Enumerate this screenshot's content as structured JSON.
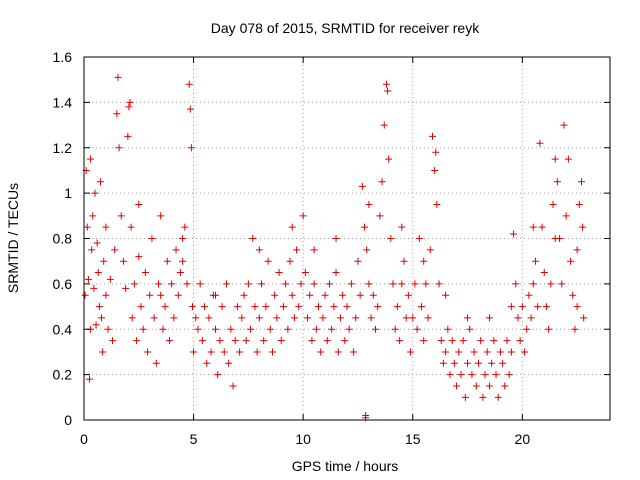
{
  "chart_data": {
    "type": "scatter",
    "title": "Day 078 of 2015, SRMTID for receiver reyk",
    "xlabel": "GPS time / hours",
    "ylabel": "SRMTID / TECUs",
    "xlim": [
      0,
      24
    ],
    "ylim": [
      0,
      1.6
    ],
    "xticks": [
      "0",
      "5",
      "10",
      "15",
      "20"
    ],
    "yticks": [
      "0",
      "0.2",
      "0.4",
      "0.6",
      "0.8",
      "1",
      "1.2",
      "1.4",
      "1.6"
    ],
    "grid": true,
    "marker": "plus",
    "color": "#e00000",
    "series": [
      {
        "name": "SRMTID",
        "points": [
          [
            0.05,
            0.55
          ],
          [
            0.1,
            1.1
          ],
          [
            0.15,
            0.85
          ],
          [
            0.2,
            0.62
          ],
          [
            0.25,
            0.18
          ],
          [
            0.3,
            1.15
          ],
          [
            0.35,
            0.75
          ],
          [
            0.4,
            0.9
          ],
          [
            0.45,
            0.58
          ],
          [
            0.5,
            1.0
          ],
          [
            0.55,
            0.42
          ],
          [
            0.6,
            0.78
          ],
          [
            0.65,
            0.65
          ],
          [
            0.7,
            0.5
          ],
          [
            0.75,
            1.05
          ],
          [
            0.8,
            0.45
          ],
          [
            0.85,
            0.3
          ],
          [
            0.9,
            0.7
          ],
          [
            1.0,
            0.55
          ],
          [
            1.1,
            0.4
          ],
          [
            1.2,
            0.62
          ],
          [
            1.3,
            0.35
          ],
          [
            1.4,
            0.75
          ],
          [
            1.5,
            1.35
          ],
          [
            1.55,
            1.51
          ],
          [
            1.6,
            1.2
          ],
          [
            1.7,
            0.9
          ],
          [
            1.8,
            0.7
          ],
          [
            1.9,
            0.58
          ],
          [
            2.0,
            1.25
          ],
          [
            2.05,
            1.38
          ],
          [
            2.1,
            1.4
          ],
          [
            2.15,
            0.85
          ],
          [
            2.2,
            0.45
          ],
          [
            2.3,
            0.6
          ],
          [
            2.4,
            0.35
          ],
          [
            2.5,
            0.72
          ],
          [
            2.6,
            0.5
          ],
          [
            2.7,
            0.4
          ],
          [
            2.8,
            0.65
          ],
          [
            2.9,
            0.3
          ],
          [
            3.0,
            0.55
          ],
          [
            3.1,
            0.8
          ],
          [
            3.2,
            0.45
          ],
          [
            3.3,
            0.25
          ],
          [
            3.4,
            0.6
          ],
          [
            3.5,
            0.9
          ],
          [
            3.6,
            0.4
          ],
          [
            3.7,
            0.5
          ],
          [
            3.8,
            0.7
          ],
          [
            3.9,
            0.35
          ],
          [
            4.0,
            0.6
          ],
          [
            4.1,
            0.45
          ],
          [
            4.2,
            0.75
          ],
          [
            4.3,
            0.55
          ],
          [
            4.4,
            0.65
          ],
          [
            4.5,
            0.7
          ],
          [
            4.6,
            0.85
          ],
          [
            4.7,
            0.6
          ],
          [
            4.8,
            1.48
          ],
          [
            4.85,
            1.37
          ],
          [
            4.9,
            1.2
          ],
          [
            4.95,
            0.5
          ],
          [
            5.0,
            0.3
          ],
          [
            5.1,
            0.45
          ],
          [
            5.2,
            0.4
          ],
          [
            5.3,
            0.6
          ],
          [
            5.4,
            0.35
          ],
          [
            5.5,
            0.5
          ],
          [
            5.6,
            0.25
          ],
          [
            5.7,
            0.45
          ],
          [
            5.8,
            0.3
          ],
          [
            5.9,
            0.55
          ],
          [
            6.0,
            0.4
          ],
          [
            6.1,
            0.2
          ],
          [
            6.2,
            0.35
          ],
          [
            6.3,
            0.5
          ],
          [
            6.4,
            0.3
          ],
          [
            6.5,
            0.6
          ],
          [
            6.6,
            0.25
          ],
          [
            6.7,
            0.4
          ],
          [
            6.8,
            0.15
          ],
          [
            6.9,
            0.35
          ],
          [
            7.0,
            0.5
          ],
          [
            7.1,
            0.3
          ],
          [
            7.2,
            0.45
          ],
          [
            7.3,
            0.55
          ],
          [
            7.4,
            0.35
          ],
          [
            7.5,
            0.6
          ],
          [
            7.6,
            0.4
          ],
          [
            7.7,
            0.8
          ],
          [
            7.8,
            0.5
          ],
          [
            7.9,
            0.3
          ],
          [
            8.0,
            0.45
          ],
          [
            8.1,
            0.6
          ],
          [
            8.2,
            0.35
          ],
          [
            8.3,
            0.5
          ],
          [
            8.4,
            0.7
          ],
          [
            8.5,
            0.4
          ],
          [
            8.6,
            0.3
          ],
          [
            8.7,
            0.55
          ],
          [
            8.8,
            0.45
          ],
          [
            8.9,
            0.65
          ],
          [
            9.0,
            0.35
          ],
          [
            9.1,
            0.5
          ],
          [
            9.2,
            0.6
          ],
          [
            9.3,
            0.4
          ],
          [
            9.4,
            0.7
          ],
          [
            9.5,
            0.55
          ],
          [
            9.6,
            0.45
          ],
          [
            9.7,
            0.75
          ],
          [
            9.8,
            0.5
          ],
          [
            9.9,
            0.6
          ],
          [
            10.0,
            0.9
          ],
          [
            10.1,
            0.65
          ],
          [
            10.2,
            0.45
          ],
          [
            10.3,
            0.55
          ],
          [
            10.4,
            0.35
          ],
          [
            10.5,
            0.6
          ],
          [
            10.6,
            0.4
          ],
          [
            10.7,
            0.5
          ],
          [
            10.8,
            0.3
          ],
          [
            10.9,
            0.45
          ],
          [
            11.0,
            0.55
          ],
          [
            11.1,
            0.35
          ],
          [
            11.2,
            0.6
          ],
          [
            11.3,
            0.4
          ],
          [
            11.4,
            0.5
          ],
          [
            11.5,
            0.65
          ],
          [
            11.6,
            0.3
          ],
          [
            11.7,
            0.45
          ],
          [
            11.8,
            0.55
          ],
          [
            11.9,
            0.35
          ],
          [
            12.0,
            0.5
          ],
          [
            12.1,
            0.4
          ],
          [
            12.2,
            0.6
          ],
          [
            12.3,
            0.3
          ],
          [
            12.4,
            0.45
          ],
          [
            12.5,
            0.7
          ],
          [
            12.6,
            0.55
          ],
          [
            12.7,
            1.03
          ],
          [
            12.8,
            0.85
          ],
          [
            12.9,
            0.75
          ],
          [
            13.0,
            0.6
          ],
          [
            13.1,
            0.45
          ],
          [
            13.2,
            0.55
          ],
          [
            13.3,
            0.4
          ],
          [
            13.4,
            0.5
          ],
          [
            13.5,
            0.9
          ],
          [
            13.6,
            1.05
          ],
          [
            13.7,
            1.3
          ],
          [
            13.8,
            1.48
          ],
          [
            13.85,
            1.45
          ],
          [
            13.9,
            1.15
          ],
          [
            14.0,
            0.8
          ],
          [
            14.1,
            0.6
          ],
          [
            14.2,
            0.4
          ],
          [
            14.3,
            0.5
          ],
          [
            14.4,
            0.35
          ],
          [
            14.5,
            0.6
          ],
          [
            14.6,
            0.7
          ],
          [
            14.7,
            0.45
          ],
          [
            14.8,
            0.55
          ],
          [
            14.9,
            0.3
          ],
          [
            15.0,
            0.45
          ],
          [
            15.1,
            0.6
          ],
          [
            15.2,
            0.4
          ],
          [
            15.3,
            0.8
          ],
          [
            15.4,
            0.5
          ],
          [
            15.5,
            0.35
          ],
          [
            15.6,
            0.6
          ],
          [
            15.7,
            0.45
          ],
          [
            15.8,
            0.75
          ],
          [
            15.9,
            1.25
          ],
          [
            16.0,
            1.1
          ],
          [
            16.05,
            1.18
          ],
          [
            16.1,
            0.95
          ],
          [
            16.2,
            0.6
          ],
          [
            16.3,
            0.35
          ],
          [
            16.4,
            0.25
          ],
          [
            16.5,
            0.3
          ],
          [
            16.6,
            0.4
          ],
          [
            16.7,
            0.2
          ],
          [
            16.8,
            0.35
          ],
          [
            16.9,
            0.25
          ],
          [
            17.0,
            0.15
          ],
          [
            17.1,
            0.3
          ],
          [
            17.2,
            0.2
          ],
          [
            17.3,
            0.35
          ],
          [
            17.4,
            0.1
          ],
          [
            17.5,
            0.25
          ],
          [
            17.6,
            0.4
          ],
          [
            17.7,
            0.2
          ],
          [
            17.8,
            0.3
          ],
          [
            17.9,
            0.15
          ],
          [
            18.0,
            0.25
          ],
          [
            18.1,
            0.35
          ],
          [
            18.2,
            0.1
          ],
          [
            18.3,
            0.2
          ],
          [
            18.4,
            0.3
          ],
          [
            18.5,
            0.15
          ],
          [
            18.6,
            0.25
          ],
          [
            18.7,
            0.35
          ],
          [
            18.8,
            0.2
          ],
          [
            18.9,
            0.1
          ],
          [
            19.0,
            0.3
          ],
          [
            19.1,
            0.25
          ],
          [
            19.2,
            0.15
          ],
          [
            19.3,
            0.35
          ],
          [
            19.4,
            0.2
          ],
          [
            19.5,
            0.3
          ],
          [
            19.6,
            0.82
          ],
          [
            19.7,
            0.6
          ],
          [
            19.8,
            0.45
          ],
          [
            19.9,
            0.35
          ],
          [
            20.0,
            0.5
          ],
          [
            20.1,
            0.3
          ],
          [
            20.2,
            0.4
          ],
          [
            20.3,
            0.55
          ],
          [
            20.4,
            0.45
          ],
          [
            20.5,
            0.6
          ],
          [
            20.6,
            0.7
          ],
          [
            20.7,
            0.5
          ],
          [
            20.8,
            1.22
          ],
          [
            20.9,
            0.85
          ],
          [
            21.0,
            0.65
          ],
          [
            21.1,
            0.5
          ],
          [
            21.2,
            0.4
          ],
          [
            21.3,
            0.6
          ],
          [
            21.4,
            0.95
          ],
          [
            21.5,
            1.15
          ],
          [
            21.6,
            1.05
          ],
          [
            21.7,
            0.8
          ],
          [
            21.8,
            0.6
          ],
          [
            21.9,
            1.3
          ],
          [
            22.0,
            0.9
          ],
          [
            22.1,
            1.15
          ],
          [
            22.2,
            0.7
          ],
          [
            22.3,
            0.55
          ],
          [
            22.4,
            0.4
          ],
          [
            22.5,
            0.5
          ],
          [
            22.6,
            0.95
          ],
          [
            22.7,
            1.05
          ],
          [
            22.75,
            0.85
          ],
          [
            22.8,
            0.45
          ],
          [
            0.3,
            0.4
          ],
          [
            1.0,
            0.85
          ],
          [
            2.5,
            0.95
          ],
          [
            3.5,
            0.55
          ],
          [
            4.5,
            0.8
          ],
          [
            6.0,
            0.55
          ],
          [
            8.0,
            0.75
          ],
          [
            9.5,
            0.85
          ],
          [
            10.5,
            0.75
          ],
          [
            11.5,
            0.8
          ],
          [
            13.0,
            0.95
          ],
          [
            14.5,
            0.85
          ],
          [
            15.5,
            0.7
          ],
          [
            16.5,
            0.55
          ],
          [
            17.5,
            0.45
          ],
          [
            18.5,
            0.45
          ],
          [
            19.5,
            0.5
          ],
          [
            20.5,
            0.85
          ],
          [
            21.5,
            0.8
          ],
          [
            22.5,
            0.75
          ],
          [
            12.85,
            0.01
          ],
          [
            12.85,
            0.02
          ]
        ]
      }
    ]
  }
}
